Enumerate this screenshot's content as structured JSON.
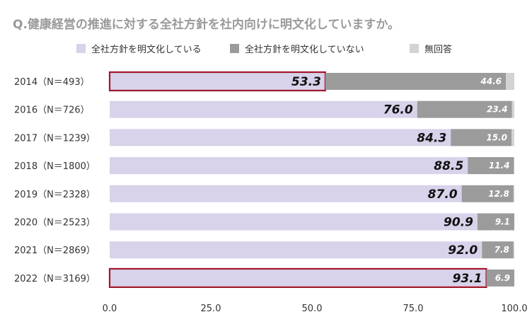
{
  "chart_data": {
    "type": "bar",
    "orientation": "horizontal",
    "stacked": true,
    "title": "Q.健康経営の推進に対する全社方針を社内向けに明文化していますか。",
    "categories": [
      "2014（N＝493）",
      "2016（N＝726）",
      "2017（N＝1239）",
      "2018（N＝1800）",
      "2019（N＝2328）",
      "2020（N＝2523）",
      "2021（N＝2869）",
      "2022（N＝3169）"
    ],
    "series": [
      {
        "name": "全社方針を明文化している",
        "color": "#d8d2ea",
        "values": [
          53.3,
          76.0,
          84.3,
          88.5,
          87.0,
          90.9,
          92.0,
          93.1
        ],
        "labels": [
          "53.3",
          "76.0",
          "84.3",
          "88.5",
          "87.0",
          "90.9",
          "92.0",
          "93.1"
        ]
      },
      {
        "name": "全社方針を明文化していない",
        "color": "#9b9b9b",
        "values": [
          44.6,
          23.4,
          15.0,
          11.4,
          12.8,
          9.1,
          7.8,
          6.9
        ],
        "labels": [
          "44.6",
          "23.4",
          "15.0",
          "11.4",
          "12.8",
          "9.1",
          "7.8",
          "6.9"
        ]
      },
      {
        "name": "無回答",
        "color": "#d3d3d3",
        "values": [
          2.1,
          0.6,
          0.7,
          0.1,
          0.2,
          0.0,
          0.2,
          0.0
        ],
        "labels": [
          "",
          "",
          "",
          "",
          "",
          "",
          "",
          ""
        ]
      }
    ],
    "xlim": [
      0,
      100
    ],
    "xticks": [
      "0.0",
      "25.0",
      "50.0",
      "75.0",
      "100.0"
    ],
    "highlight_color": "#a3172a",
    "highlighted": [
      {
        "category": "2014（N＝493）",
        "series": "全社方針を明文化している"
      },
      {
        "category": "2022（N＝3169）",
        "series": "全社方針を明文化している"
      }
    ],
    "legend": "top",
    "grid": false
  }
}
